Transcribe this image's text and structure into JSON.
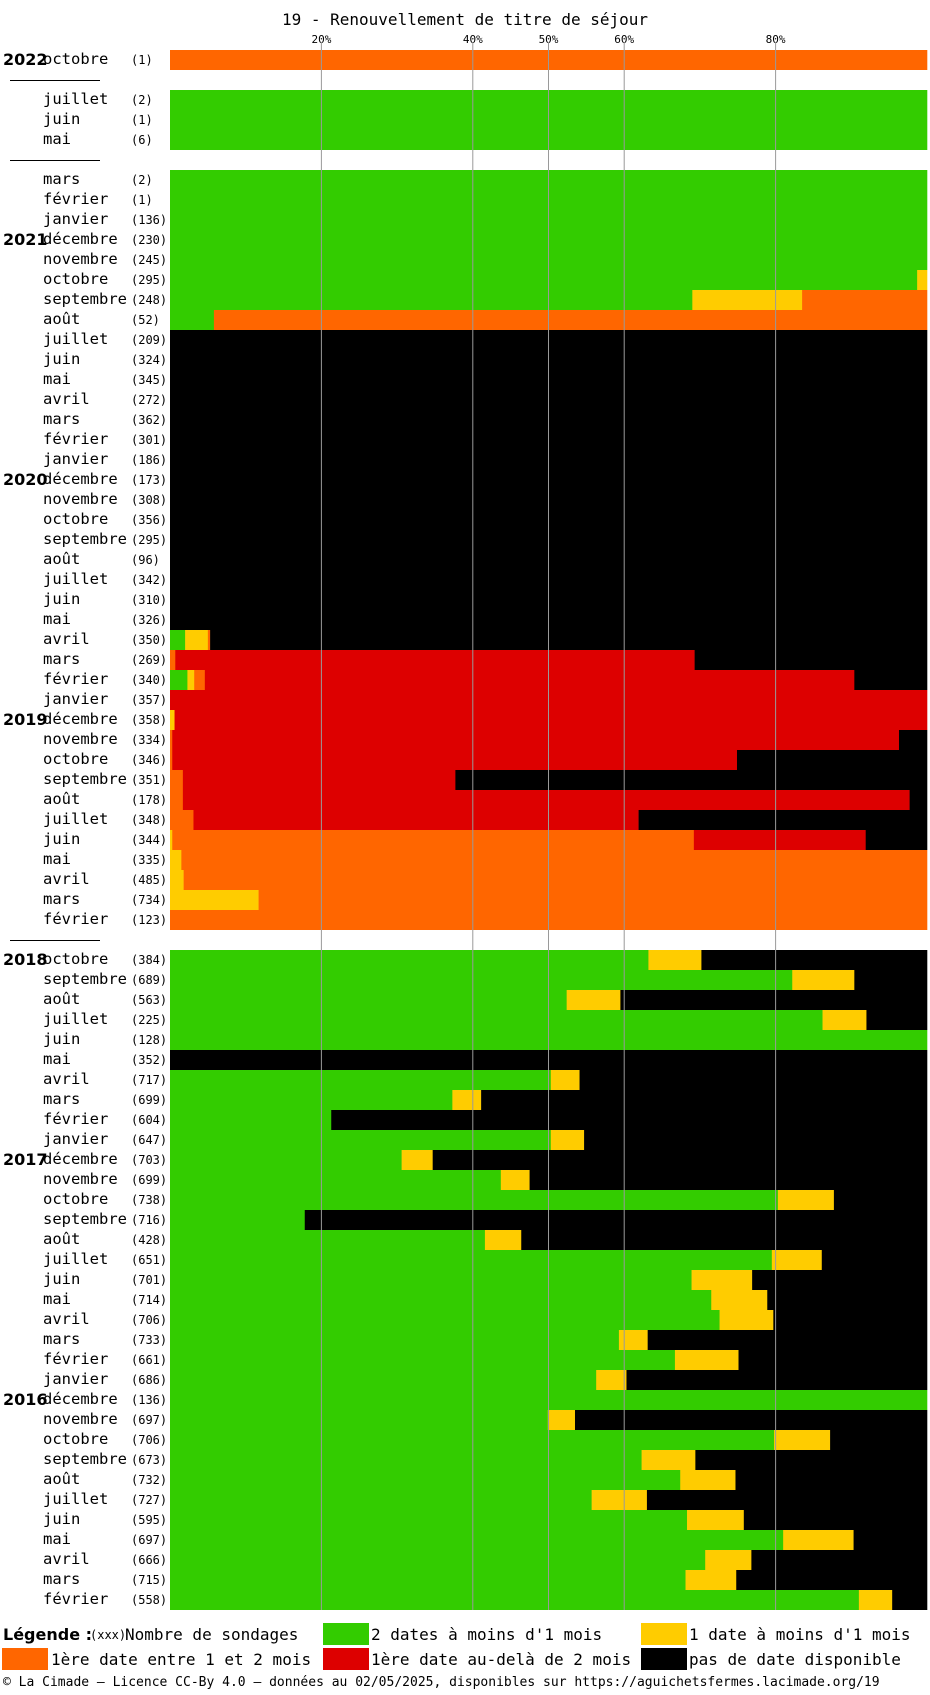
{
  "chart_data": {
    "type": "bar",
    "stacked": true,
    "orientation": "horizontal",
    "normalized_percent": true,
    "title": "19 - Renouvellement de titre de séjour",
    "x_ticks": [
      "20%",
      "40%",
      "50%",
      "60%",
      "80%"
    ],
    "x_tick_values": [
      20,
      40,
      50,
      60,
      80
    ],
    "xlim": [
      0,
      100
    ],
    "grid": "vertical lines at ticks",
    "series": [
      {
        "name": "2 dates à moins d'1 mois",
        "color": "#33cc00"
      },
      {
        "name": "1 date à moins d'1 mois",
        "color": "#ffcc00"
      },
      {
        "name": "1ère date entre 1 et 2 mois",
        "color": "#ff6600"
      },
      {
        "name": "1ère date au-delà de 2 mois",
        "color": "#dd0000"
      },
      {
        "name": "pas de date disponible",
        "color": "#000000"
      }
    ],
    "rows": [
      {
        "year": "2022",
        "month": "octobre",
        "count": "(1)",
        "v": [
          0,
          0,
          100,
          0,
          0
        ]
      },
      {
        "sep": true
      },
      {
        "month": "juillet",
        "count": "(2)",
        "v": [
          100,
          0,
          0,
          0,
          0
        ]
      },
      {
        "month": "juin",
        "count": "(1)",
        "v": [
          100,
          0,
          0,
          0,
          0
        ]
      },
      {
        "month": "mai",
        "count": "(6)",
        "v": [
          100,
          0,
          0,
          0,
          0
        ]
      },
      {
        "sep": true
      },
      {
        "month": "mars",
        "count": "(2)",
        "v": [
          100,
          0,
          0,
          0,
          0
        ]
      },
      {
        "month": "février",
        "count": "(1)",
        "v": [
          100,
          0,
          0,
          0,
          0
        ]
      },
      {
        "month": "janvier",
        "count": "(136)",
        "v": [
          100,
          0,
          0,
          0,
          0
        ]
      },
      {
        "year": "2021",
        "month": "décembre",
        "count": "(230)",
        "v": [
          100,
          0,
          0,
          0,
          0
        ]
      },
      {
        "month": "novembre",
        "count": "(245)",
        "v": [
          100,
          0,
          0,
          0,
          0
        ]
      },
      {
        "month": "octobre",
        "count": "(295)",
        "v": [
          98.7,
          1.3,
          0,
          0,
          0
        ]
      },
      {
        "month": "septembre",
        "count": "(248)",
        "v": [
          69,
          14.5,
          16.5,
          0,
          0
        ]
      },
      {
        "month": "août",
        "count": "(52)",
        "v": [
          5.8,
          0,
          94.2,
          0,
          0
        ]
      },
      {
        "month": "juillet",
        "count": "(209)",
        "v": [
          0,
          0,
          0,
          0,
          100
        ]
      },
      {
        "month": "juin",
        "count": "(324)",
        "v": [
          0,
          0,
          0,
          0,
          100
        ]
      },
      {
        "month": "mai",
        "count": "(345)",
        "v": [
          0,
          0,
          0,
          0,
          100
        ]
      },
      {
        "month": "avril",
        "count": "(272)",
        "v": [
          0,
          0,
          0,
          0,
          100
        ]
      },
      {
        "month": "mars",
        "count": "(362)",
        "v": [
          0,
          0,
          0,
          0,
          100
        ]
      },
      {
        "month": "février",
        "count": "(301)",
        "v": [
          0,
          0,
          0,
          0,
          100
        ]
      },
      {
        "month": "janvier",
        "count": "(186)",
        "v": [
          0,
          0,
          0,
          0,
          100
        ]
      },
      {
        "year": "2020",
        "month": "décembre",
        "count": "(173)",
        "v": [
          0,
          0,
          0,
          0,
          100
        ]
      },
      {
        "month": "novembre",
        "count": "(308)",
        "v": [
          0,
          0,
          0,
          0,
          100
        ]
      },
      {
        "month": "octobre",
        "count": "(356)",
        "v": [
          0,
          0,
          0,
          0,
          100
        ]
      },
      {
        "month": "septembre",
        "count": "(295)",
        "v": [
          0,
          0,
          0,
          0,
          100
        ]
      },
      {
        "month": "août",
        "count": "(96)",
        "v": [
          0,
          0,
          0,
          0,
          100
        ]
      },
      {
        "month": "juillet",
        "count": "(342)",
        "v": [
          0,
          0,
          0,
          0,
          100
        ]
      },
      {
        "month": "juin",
        "count": "(310)",
        "v": [
          0,
          0,
          0,
          0,
          100
        ]
      },
      {
        "month": "mai",
        "count": "(326)",
        "v": [
          0,
          0,
          0,
          0,
          100
        ]
      },
      {
        "month": "avril",
        "count": "(350)",
        "v": [
          2,
          3,
          0.3,
          0,
          94.7
        ]
      },
      {
        "month": "mars",
        "count": "(269)",
        "v": [
          0,
          0,
          0.7,
          68.6,
          30.7
        ]
      },
      {
        "month": "février",
        "count": "(340)",
        "v": [
          2.3,
          0.9,
          1.4,
          85.8,
          9.6
        ]
      },
      {
        "month": "janvier",
        "count": "(357)",
        "v": [
          0,
          0,
          0,
          100,
          0
        ]
      },
      {
        "year": "2019",
        "month": "décembre",
        "count": "(358)",
        "v": [
          0,
          0.6,
          0,
          99.4,
          0
        ]
      },
      {
        "month": "novembre",
        "count": "(334)",
        "v": [
          0,
          0,
          0.3,
          96,
          3.7
        ]
      },
      {
        "month": "octobre",
        "count": "(346)",
        "v": [
          0,
          0,
          0.3,
          74.6,
          25.1
        ]
      },
      {
        "month": "septembre",
        "count": "(351)",
        "v": [
          0,
          0,
          1.7,
          36,
          62.3
        ]
      },
      {
        "month": "août",
        "count": "(178)",
        "v": [
          0,
          0,
          1.7,
          96,
          2.3
        ]
      },
      {
        "month": "juillet",
        "count": "(348)",
        "v": [
          0,
          0,
          3.1,
          58.8,
          38.1
        ]
      },
      {
        "month": "juin",
        "count": "(344)",
        "v": [
          0,
          0.3,
          68.9,
          22.7,
          8.1
        ]
      },
      {
        "month": "mai",
        "count": "(335)",
        "v": [
          0,
          1.5,
          98.5,
          0,
          0
        ]
      },
      {
        "month": "avril",
        "count": "(485)",
        "v": [
          0,
          1.8,
          98.2,
          0,
          0
        ]
      },
      {
        "month": "mars",
        "count": "(734)",
        "v": [
          0,
          11.7,
          88.3,
          0,
          0
        ]
      },
      {
        "month": "février",
        "count": "(123)",
        "v": [
          0,
          0,
          100,
          0,
          0
        ]
      },
      {
        "sep": true
      },
      {
        "year": "2018",
        "month": "octobre",
        "count": "(384)",
        "v": [
          63.2,
          7,
          0,
          0,
          29.8
        ]
      },
      {
        "month": "septembre",
        "count": "(689)",
        "v": [
          82.2,
          8.2,
          0,
          0,
          9.6
        ]
      },
      {
        "month": "août",
        "count": "(563)",
        "v": [
          52.4,
          7.1,
          0,
          0,
          40.5
        ]
      },
      {
        "month": "juillet",
        "count": "(225)",
        "v": [
          86.2,
          5.8,
          0,
          0,
          8
        ]
      },
      {
        "month": "juin",
        "count": "(128)",
        "v": [
          100,
          0,
          0,
          0,
          0
        ]
      },
      {
        "month": "mai",
        "count": "(352)",
        "v": [
          0,
          0,
          0,
          0,
          100
        ]
      },
      {
        "month": "avril",
        "count": "(717)",
        "v": [
          50.3,
          3.8,
          0,
          0,
          45.9
        ]
      },
      {
        "month": "mars",
        "count": "(699)",
        "v": [
          37.3,
          3.8,
          0,
          0,
          58.9
        ]
      },
      {
        "month": "février",
        "count": "(604)",
        "v": [
          21.3,
          0,
          0,
          0,
          78.7
        ]
      },
      {
        "month": "janvier",
        "count": "(647)",
        "v": [
          50.3,
          4.4,
          0,
          0,
          45.3
        ]
      },
      {
        "year": "2017",
        "month": "décembre",
        "count": "(703)",
        "v": [
          30.6,
          4.1,
          0,
          0,
          65.3
        ]
      },
      {
        "month": "novembre",
        "count": "(699)",
        "v": [
          43.7,
          3.8,
          0,
          0,
          52.5
        ]
      },
      {
        "month": "octobre",
        "count": "(738)",
        "v": [
          80.3,
          7.4,
          0,
          0,
          12.3
        ]
      },
      {
        "month": "septembre",
        "count": "(716)",
        "v": [
          17.8,
          0,
          0,
          0,
          82.2
        ]
      },
      {
        "month": "août",
        "count": "(428)",
        "v": [
          41.6,
          4.8,
          0,
          0,
          53.6
        ]
      },
      {
        "month": "juillet",
        "count": "(651)",
        "v": [
          79.5,
          6.6,
          0,
          0,
          13.9
        ]
      },
      {
        "month": "juin",
        "count": "(701)",
        "v": [
          68.9,
          8,
          0,
          0,
          23.1
        ]
      },
      {
        "month": "mai",
        "count": "(714)",
        "v": [
          71.5,
          7.4,
          0,
          0,
          21.1
        ]
      },
      {
        "month": "avril",
        "count": "(706)",
        "v": [
          72.6,
          7.1,
          0,
          0,
          20.3
        ]
      },
      {
        "month": "mars",
        "count": "(733)",
        "v": [
          59.3,
          3.8,
          0,
          0,
          36.9
        ]
      },
      {
        "month": "février",
        "count": "(661)",
        "v": [
          66.7,
          8.4,
          0,
          0,
          24.9
        ]
      },
      {
        "month": "janvier",
        "count": "(686)",
        "v": [
          56.3,
          4,
          0,
          0,
          39.7
        ]
      },
      {
        "year": "2016",
        "month": "décembre",
        "count": "(136)",
        "v": [
          100,
          0,
          0,
          0,
          0
        ]
      },
      {
        "month": "novembre",
        "count": "(697)",
        "v": [
          49.9,
          3.6,
          0,
          0,
          46.5
        ]
      },
      {
        "month": "octobre",
        "count": "(706)",
        "v": [
          79.8,
          7.4,
          0,
          0,
          12.8
        ]
      },
      {
        "month": "septembre",
        "count": "(673)",
        "v": [
          62.3,
          7.1,
          0,
          0,
          30.6
        ]
      },
      {
        "month": "août",
        "count": "(732)",
        "v": [
          67.4,
          7.3,
          0,
          0,
          25.3
        ]
      },
      {
        "month": "juillet",
        "count": "(727)",
        "v": [
          55.7,
          7.3,
          0,
          0,
          37
        ]
      },
      {
        "month": "juin",
        "count": "(595)",
        "v": [
          68.3,
          7.5,
          0,
          0,
          24.2
        ]
      },
      {
        "month": "mai",
        "count": "(697)",
        "v": [
          81,
          9.3,
          0,
          0,
          9.7
        ]
      },
      {
        "month": "avril",
        "count": "(666)",
        "v": [
          70.7,
          6.1,
          0,
          0,
          23.2
        ]
      },
      {
        "month": "mars",
        "count": "(715)",
        "v": [
          68.1,
          6.7,
          0,
          0,
          25.2
        ]
      },
      {
        "month": "février",
        "count": "(558)",
        "v": [
          91,
          4.4,
          0,
          0,
          4.6
        ]
      }
    ]
  },
  "legend": {
    "title": "Légende :",
    "count_hint": "(xxx)",
    "count_label": "Nombre de sondages",
    "green": "2 dates à moins d'1 mois",
    "yellow": "1 date à moins d'1 mois",
    "orange": "1ère date entre 1 et 2 mois",
    "red": "1ère date au-delà de 2 mois",
    "black": "pas de date disponible"
  },
  "footer": "© La Cimade — Licence CC-By 4.0 — données au 02/05/2025, disponibles sur https://aguichetsfermes.lacimade.org/19"
}
